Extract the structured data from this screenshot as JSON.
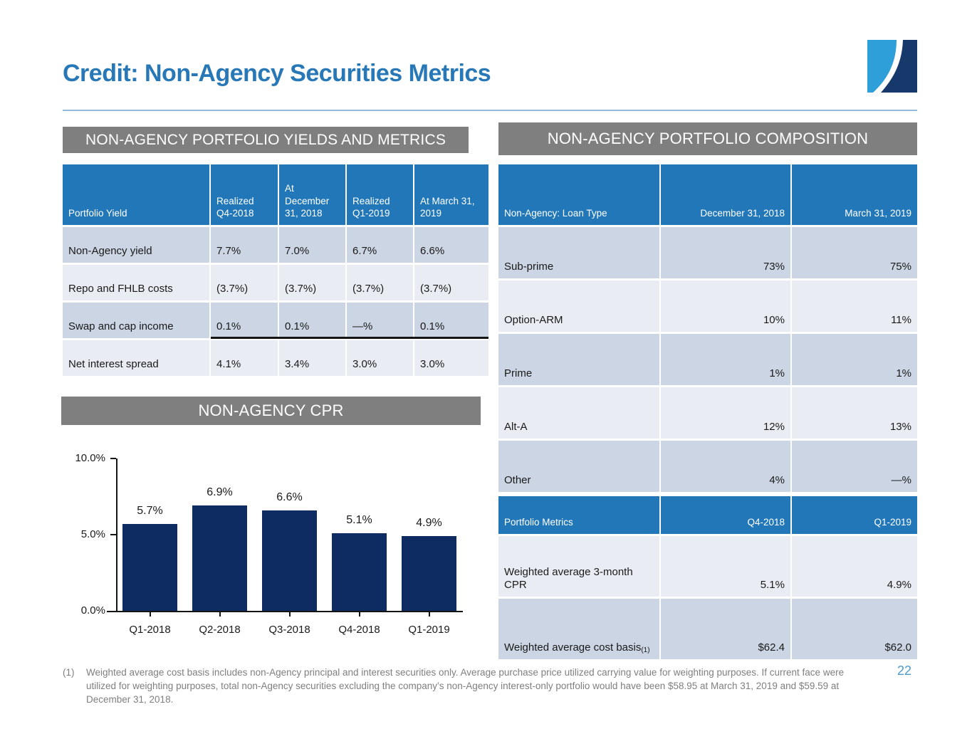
{
  "slide": {
    "title": "Credit: Non-Agency Securities Metrics",
    "page_number": "22",
    "footnote_marker": "(1)",
    "footnote_text": "Weighted average cost basis includes non-Agency principal and interest securities only.  Average purchase price utilized carrying value for weighting purposes.  If current face were utilized for weighting purposes, total non-Agency securities excluding the company’s non-Agency interest-only portfolio would have been $58.95 at March 31, 2019 and $59.59 at December 31, 2018."
  },
  "colors": {
    "title_blue": "#2878b7",
    "section_bar_gray": "#7f7f7f",
    "table_header_blue": "#2277b8",
    "row_dark": "#cbd5e3",
    "row_light": "#e9edf3",
    "bar_navy": "#0e2b62",
    "footnote_gray": "#7f7f7f",
    "page_number_blue": "#4e9bce",
    "logo_light_blue": "#2e9fd8",
    "logo_dark_navy": "#17386b"
  },
  "yields_section": {
    "header": "NON-AGENCY PORTFOLIO YIELDS AND METRICS",
    "table": {
      "columns": [
        "Portfolio Yield",
        "Realized Q4-2018",
        "At December 31, 2018",
        "Realized Q1-2019",
        "At March 31, 2019"
      ],
      "rows": [
        {
          "label": "Non-Agency yield",
          "values": [
            "7.7%",
            "7.0%",
            "6.7%",
            "6.6%"
          ]
        },
        {
          "label": "Repo and FHLB costs",
          "values": [
            "(3.7%)",
            "(3.7%)",
            "(3.7%)",
            "(3.7%)"
          ]
        },
        {
          "label": "Swap and cap income",
          "values": [
            "0.1%",
            "0.1%",
            "—%",
            "0.1%"
          ]
        },
        {
          "label": "Net interest spread",
          "values": [
            "4.1%",
            "3.4%",
            "3.0%",
            "3.0%"
          ]
        }
      ]
    }
  },
  "composition_section": {
    "header": "NON-AGENCY PORTFOLIO COMPOSITION",
    "table": {
      "columns": [
        "Non-Agency: Loan Type",
        "December 31, 2018",
        "March 31, 2019"
      ],
      "rows": [
        {
          "label": "Sub-prime",
          "values": [
            "73%",
            "75%"
          ]
        },
        {
          "label": "Option-ARM",
          "values": [
            "10%",
            "11%"
          ]
        },
        {
          "label": "Prime",
          "values": [
            "1%",
            "1%"
          ]
        },
        {
          "label": "Alt-A",
          "values": [
            "12%",
            "13%"
          ]
        },
        {
          "label": "Other",
          "values": [
            "4%",
            "—%"
          ]
        }
      ]
    }
  },
  "metrics_section": {
    "table": {
      "columns": [
        "Portfolio Metrics",
        "Q4-2018",
        "Q1-2019"
      ],
      "rows": [
        {
          "label": "Weighted average 3-month CPR",
          "label_sup": "",
          "values": [
            "5.1%",
            "4.9%"
          ]
        },
        {
          "label": "Weighted average cost basis",
          "label_sup": "(1)",
          "values": [
            "$62.4",
            "$62.0"
          ]
        }
      ]
    }
  },
  "cpr_section": {
    "header": "NON-AGENCY CPR"
  },
  "chart_data": {
    "type": "bar",
    "title": "NON-AGENCY CPR",
    "categories": [
      "Q1-2018",
      "Q2-2018",
      "Q3-2018",
      "Q4-2018",
      "Q1-2019"
    ],
    "values": [
      5.7,
      6.9,
      6.6,
      5.1,
      4.9
    ],
    "data_labels": [
      "5.7%",
      "6.9%",
      "6.6%",
      "5.1%",
      "4.9%"
    ],
    "xlabel": "",
    "ylabel": "",
    "ylim": [
      0,
      10
    ],
    "yticks": [
      {
        "value": 10,
        "label": "10.0%"
      },
      {
        "value": 5,
        "label": "5.0%"
      },
      {
        "value": 0,
        "label": "0.0%"
      }
    ],
    "grid": false,
    "legend": false,
    "bar_color": "#0e2b62"
  }
}
